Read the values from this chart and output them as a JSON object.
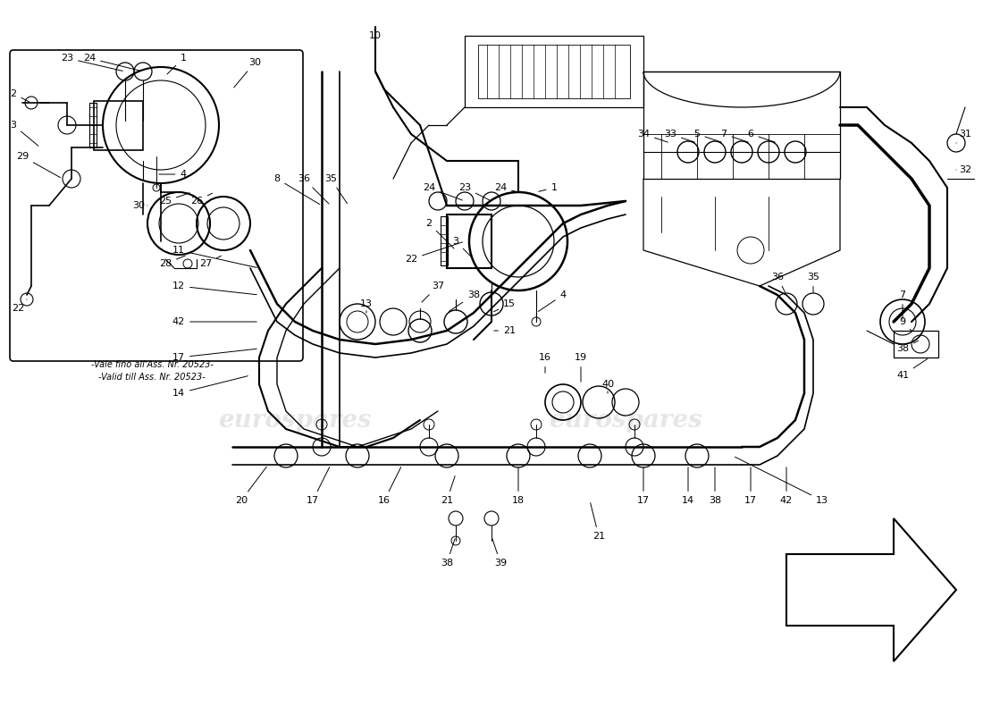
{
  "bg_color": "#ffffff",
  "watermark_text": "eurospares",
  "watermark_color": "#c8c8c8",
  "watermark_alpha": 0.45,
  "inset_label_line1": "-Vale fino all'Ass. Nr. 20523-",
  "inset_label_line2": "-Valid till Ass. Nr. 20523-",
  "line_color": "#000000",
  "text_color": "#000000",
  "font_size_numbers": 8,
  "font_size_label": 7.5,
  "inset_box_color": "#000000",
  "inset_bg_color": "#ffffff",
  "fig_width": 11.0,
  "fig_height": 8.0,
  "dpi": 100,
  "xlim": [
    0,
    110
  ],
  "ylim": [
    0,
    80
  ]
}
